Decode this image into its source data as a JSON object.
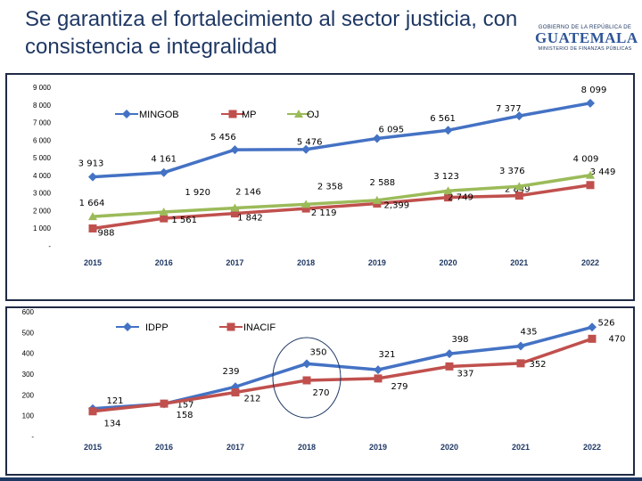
{
  "title": "Se garantiza el fortalecimiento al sector justicia, con consistencia e integralidad",
  "logo": {
    "line1": "GOBIERNO DE LA REPÚBLICA DE",
    "main": "GUATEMALA",
    "line2": "MINISTERIO DE FINANZAS PÚBLICAS"
  },
  "colors": {
    "blue": "#4472c4",
    "red": "#c0504d",
    "green": "#9bbb59",
    "title": "#1f3864"
  },
  "chart_data": [
    {
      "type": "line",
      "categories": [
        "2015",
        "2016",
        "2017",
        "2018",
        "2019",
        "2020",
        "2021",
        "2022"
      ],
      "ylim": [
        0,
        9000
      ],
      "yticks": [
        "-",
        "1 000",
        "2 000",
        "3 000",
        "4 000",
        "5 000",
        "6 000",
        "7 000",
        "8 000",
        "9 000"
      ],
      "series": [
        {
          "name": "MINGOB",
          "color": "#4472c4",
          "marker": "diamond",
          "values": [
            3913,
            4161,
            5456,
            5476,
            6095,
            6561,
            7377,
            8099
          ],
          "labels": [
            "3 913",
            "4 161",
            "5 456",
            "5 476",
            "6 095",
            "6 561",
            "7 377",
            "8 099"
          ]
        },
        {
          "name": "MP",
          "color": "#c0504d",
          "marker": "square",
          "values": [
            988,
            1561,
            1842,
            2119,
            2399,
            2749,
            2849,
            3449
          ],
          "labels": [
            "988",
            "1 561",
            "1 842",
            "2 119",
            "2,399",
            "2 749",
            "2 849",
            "3 449"
          ]
        },
        {
          "name": "OJ",
          "color": "#9bbb59",
          "marker": "triangle",
          "values": [
            1664,
            1920,
            2146,
            2358,
            2588,
            3123,
            3376,
            4009
          ],
          "labels": [
            "1 664",
            "1 920",
            "2 146",
            "2 358",
            "2 588",
            "3 123",
            "3 376",
            "4 009"
          ]
        }
      ]
    },
    {
      "type": "line",
      "categories": [
        "2015",
        "2016",
        "2017",
        "2018",
        "2019",
        "2020",
        "2021",
        "2022"
      ],
      "ylim": [
        0,
        600
      ],
      "yticks": [
        "-",
        "100",
        "200",
        "300",
        "400",
        "500",
        "600"
      ],
      "series": [
        {
          "name": "IDPP",
          "color": "#4472c4",
          "marker": "diamond",
          "values": [
            134,
            157,
            239,
            350,
            321,
            398,
            435,
            526
          ],
          "labels": [
            "134",
            "157",
            "239",
            "350",
            "321",
            "398",
            "435",
            "526"
          ]
        },
        {
          "name": "INACIF",
          "color": "#c0504d",
          "marker": "square",
          "values": [
            121,
            158,
            212,
            270,
            279,
            337,
            352,
            470
          ],
          "labels": [
            "121",
            "158",
            "212",
            "270",
            "279",
            "337",
            "352",
            "470"
          ]
        }
      ]
    }
  ]
}
